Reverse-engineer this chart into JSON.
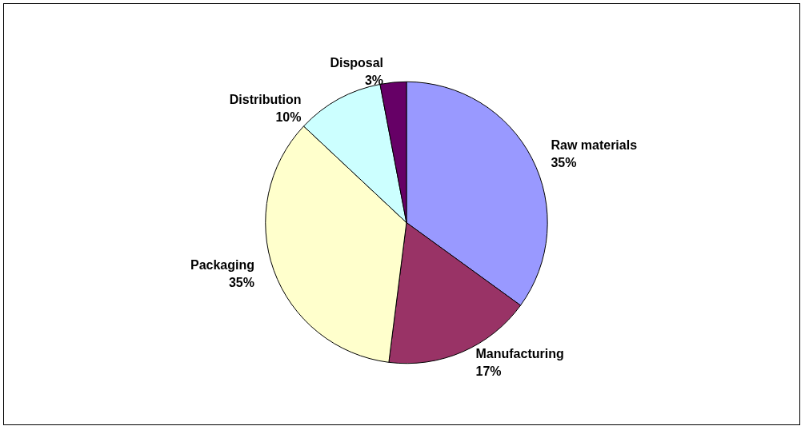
{
  "chart_data": {
    "type": "pie",
    "categories": [
      "Raw materials",
      "Manufacturing",
      "Packaging",
      "Distribution",
      "Disposal"
    ],
    "values": [
      35,
      17,
      35,
      10,
      3
    ],
    "colors": [
      "#9999ff",
      "#993366",
      "#ffffcc",
      "#ccffff",
      "#660066"
    ],
    "value_labels": [
      "35%",
      "17%",
      "35%",
      "10%",
      "3%"
    ],
    "legend": false
  }
}
